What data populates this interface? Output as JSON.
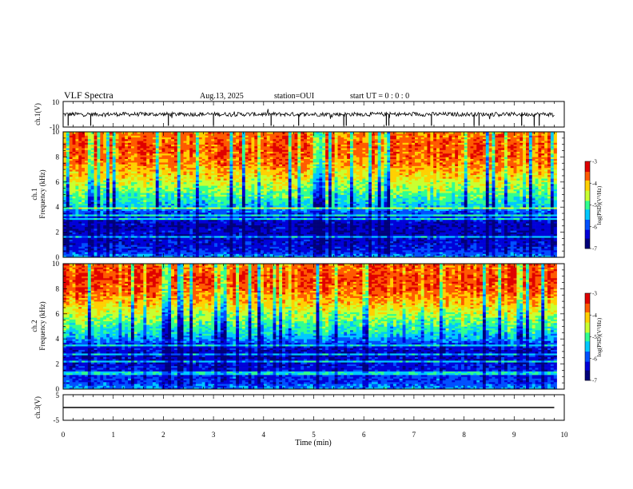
{
  "header": {
    "title": "VLF Spectra",
    "date": "Aug.13, 2025",
    "station": "station=OUI",
    "start": "start  UT =   0 : 0  : 0"
  },
  "colors": {
    "colormap": [
      "#00007a",
      "#0000d8",
      "#0050ff",
      "#00c8ff",
      "#30ff90",
      "#c8ff30",
      "#ffd000",
      "#ff5a00",
      "#e00000",
      "#ffd8d8"
    ],
    "trace": "#000000"
  },
  "chart_data": [
    {
      "type": "line",
      "id": "ch1-waveform",
      "ylabel": "ch.1(V)",
      "ylim": [
        -10,
        10
      ],
      "yticks": [
        "10",
        "-10"
      ],
      "xlim": [
        0,
        10
      ],
      "x_unit": "min",
      "series": [
        {
          "baseline": 0,
          "range": [
            -10,
            10
          ],
          "x_end": 9.8
        }
      ],
      "bar_ticks": [
        0.1,
        0.55,
        2.1,
        3.0,
        4.15,
        4.7,
        5.6,
        5.65,
        6.45,
        6.5,
        7.35,
        8.2,
        8.3,
        9.15,
        9.4,
        9.5
      ]
    },
    {
      "type": "heatmap",
      "id": "ch1-spectrogram",
      "ylabel": "ch.1\nFrequency  (kHz)",
      "ylim": [
        0,
        10
      ],
      "yticks": [
        "0",
        "2",
        "4",
        "6",
        "8",
        "10"
      ],
      "xlim": [
        0,
        9.85
      ],
      "colorbar": {
        "label": "log(PSD)(V²/Hz)",
        "range": [
          -7,
          -3
        ],
        "ticks": [
          "-3",
          "-4",
          "-5",
          "-6",
          "-7"
        ]
      },
      "profile": {
        "freq_khz": [
          0,
          0.5,
          1,
          1.5,
          2,
          2.5,
          3,
          3.5,
          4,
          4.5,
          5,
          5.5,
          6,
          6.5,
          7,
          7.5,
          8,
          8.5,
          9,
          9.5,
          10
        ],
        "log_psd": [
          -5.5,
          -6.2,
          -6.3,
          -6.4,
          -6.4,
          -6.5,
          -6.3,
          -6.0,
          -5.5,
          -5.2,
          -5.0,
          -4.7,
          -4.5,
          -4.2,
          -4.0,
          -3.8,
          -3.7,
          -3.6,
          -3.6,
          -3.7,
          -3.8
        ]
      }
    },
    {
      "type": "heatmap",
      "id": "ch2-spectrogram",
      "ylabel": "ch.2\nFrequency  (kHz)",
      "ylim": [
        0,
        10
      ],
      "yticks": [
        "0",
        "2",
        "4",
        "6",
        "8",
        "10"
      ],
      "xlim": [
        0,
        9.85
      ],
      "colorbar": {
        "label": "log(PSD)(V²/Hz)",
        "range": [
          -7,
          -3
        ],
        "ticks": [
          "-3",
          "-4",
          "-5",
          "-6",
          "-7"
        ]
      },
      "profile": {
        "freq_khz": [
          0,
          0.5,
          1,
          1.5,
          2,
          2.5,
          3,
          3.5,
          4,
          4.5,
          5,
          5.5,
          6,
          6.5,
          7,
          7.5,
          8,
          8.5,
          9,
          9.5,
          10
        ],
        "log_psd": [
          -5.5,
          -6.0,
          -6.1,
          -6.2,
          -6.3,
          -6.4,
          -6.4,
          -6.2,
          -5.6,
          -5.3,
          -5.1,
          -4.8,
          -4.6,
          -4.3,
          -4.0,
          -3.8,
          -3.6,
          -3.5,
          -3.5,
          -3.6,
          -3.7
        ]
      }
    },
    {
      "type": "line",
      "id": "ch3-waveform",
      "ylabel": "ch.3(V)",
      "ylim": [
        -5,
        5
      ],
      "yticks": [
        "5",
        "-5"
      ],
      "xlim": [
        0,
        10
      ],
      "series": [
        {
          "baseline": 0,
          "x_end": 9.8
        }
      ]
    }
  ],
  "xaxis": {
    "label": "Time  (min)",
    "ticks": [
      "0",
      "1",
      "2",
      "3",
      "4",
      "5",
      "6",
      "7",
      "8",
      "9",
      "10"
    ]
  }
}
